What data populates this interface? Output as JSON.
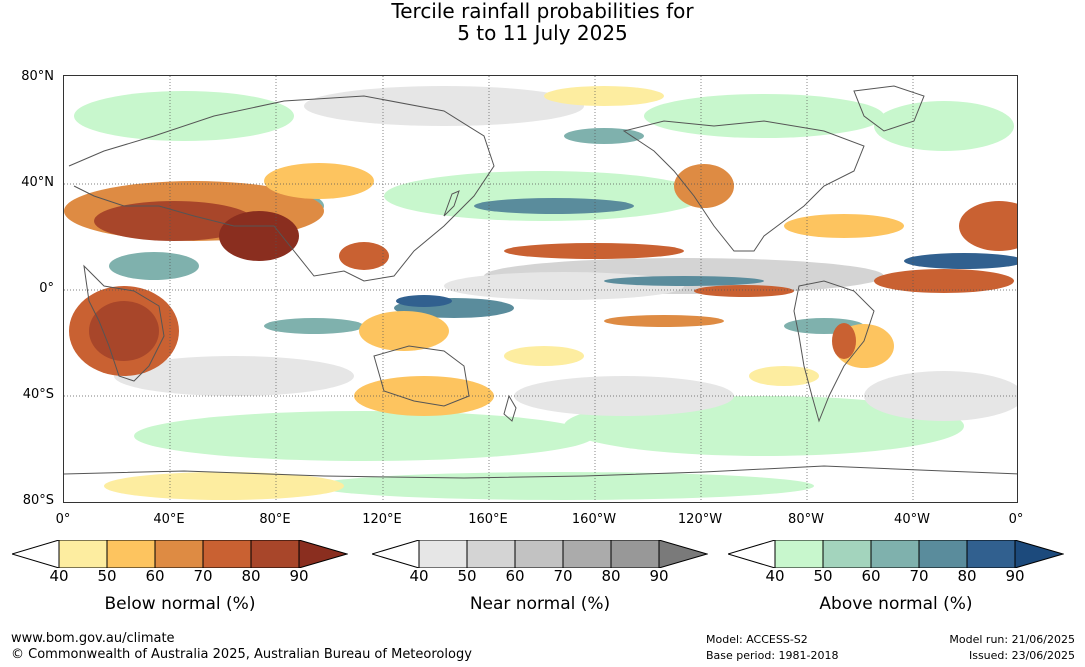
{
  "title": {
    "line1": "Tercile rainfall probabilities for",
    "line2": "5 to 11 July 2025"
  },
  "map": {
    "lat_labels": [
      "80°N",
      "40°N",
      "0°",
      "40°S",
      "80°S"
    ],
    "lon_labels": [
      "0°",
      "40°E",
      "80°E",
      "120°E",
      "160°E",
      "160°W",
      "120°W",
      "80°W",
      "40°W",
      "0°"
    ],
    "graticule": "dotted",
    "coastline_color": "#555555",
    "land_background": "#ffffff"
  },
  "legends": [
    {
      "label": "Below normal (%)",
      "ticks": [
        "40",
        "50",
        "60",
        "70",
        "80",
        "90"
      ],
      "colors": [
        "#ffffff",
        "#fdeda0",
        "#fdc45f",
        "#de8b43",
        "#c96132",
        "#a8462a",
        "#8a2e1f"
      ]
    },
    {
      "label": "Near normal (%)",
      "ticks": [
        "40",
        "50",
        "60",
        "70",
        "80",
        "90"
      ],
      "colors": [
        "#ffffff",
        "#e6e6e6",
        "#d4d4d4",
        "#c2c2c2",
        "#ababab",
        "#989898",
        "#7a7a7a"
      ]
    },
    {
      "label": "Above normal (%)",
      "ticks": [
        "40",
        "50",
        "60",
        "70",
        "80",
        "90"
      ],
      "colors": [
        "#ffffff",
        "#c8f7cd",
        "#a3d4bd",
        "#7fb1ad",
        "#5a8c9c",
        "#31608f",
        "#1c4a7c"
      ]
    }
  ],
  "footer": {
    "url": "www.bom.gov.au/climate",
    "copyright": "© Commonwealth of Australia 2025, Australian Bureau of Meteorology",
    "model": "Model: ACCESS-S2",
    "base_period": "Base period: 1981-2018",
    "model_run": "Model run: 21/06/2025",
    "issued": "Issued: 23/06/2025"
  }
}
